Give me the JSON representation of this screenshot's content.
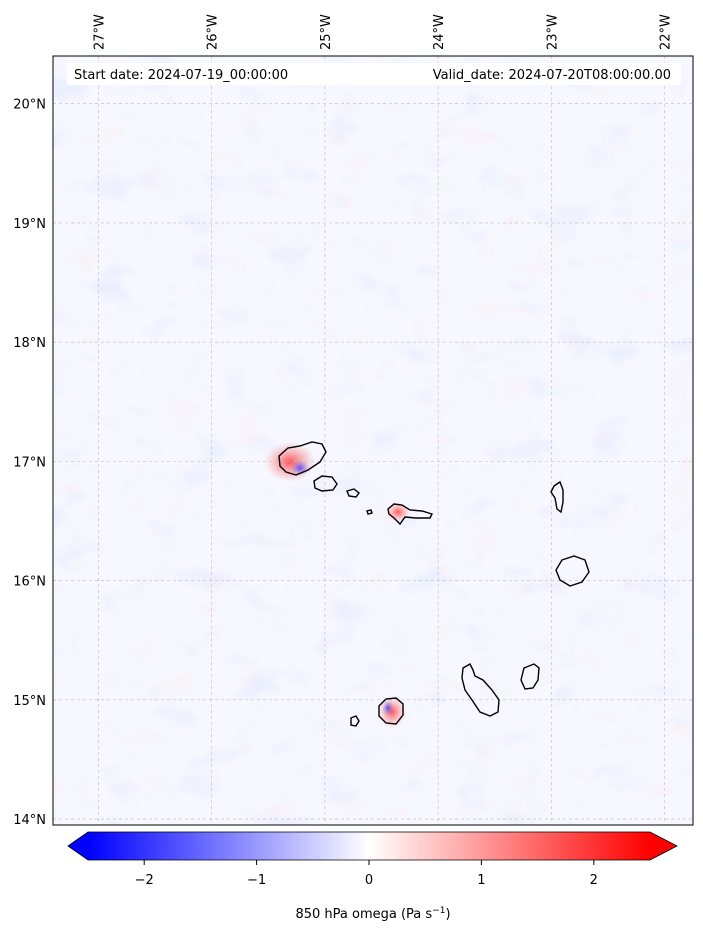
{
  "map": {
    "start_label": "Start date: 2024-07-19_00:00:00",
    "valid_label": "Valid_date: 2024-07-20T08:00:00.00",
    "lon_labels": [
      "27°W",
      "26°W",
      "25°W",
      "24°W",
      "23°W",
      "22°W"
    ],
    "lat_labels": [
      "20°N",
      "19°N",
      "18°N",
      "17°N",
      "16°N",
      "15°N",
      "14°N"
    ],
    "extent": {
      "lon_min": -27.4,
      "lon_max": -21.75,
      "lat_min": 13.95,
      "lat_max": 20.4
    }
  },
  "colorbar": {
    "ticks": [
      "−2",
      "−1",
      "0",
      "1",
      "2"
    ],
    "tick_values": [
      -2,
      -1,
      0,
      1,
      2
    ],
    "range": [
      -2.5,
      2.5
    ],
    "label_prefix": "850 hPa omega (Pa s",
    "label_exp": "−1",
    "label_suffix": ")",
    "colors": {
      "negative": "#0000ff",
      "zero": "#ffffff",
      "positive": "#ff0000"
    }
  }
}
